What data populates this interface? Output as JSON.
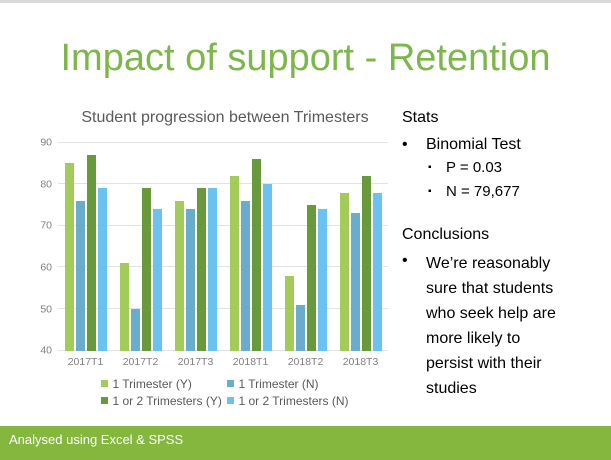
{
  "slide": {
    "title": "Impact of support - Retention",
    "footer_text": "Analysed using Excel & SPSS"
  },
  "chart_data": {
    "type": "bar",
    "title": "Student progression between Trimesters",
    "categories": [
      "2017T1",
      "2017T2",
      "2017T3",
      "2018T1",
      "2018T2",
      "2018T3"
    ],
    "series": [
      {
        "name": "1 Trimester (Y)",
        "color": "#a3cb5a",
        "values": [
          85,
          61,
          76,
          82,
          58,
          78
        ]
      },
      {
        "name": "1 Trimester (N)",
        "color": "#6face0",
        "values": [
          76,
          50,
          74,
          76,
          51,
          73
        ]
      },
      {
        "name": "1 or 2 Trimesters (Y)",
        "color": "#68993b",
        "values": [
          87,
          79,
          79,
          86,
          75,
          82
        ]
      },
      {
        "name": "1 or 2 Trimesters (N)",
        "color": "#6bc1f0",
        "values": [
          79,
          74,
          79,
          80,
          74,
          78
        ]
      }
    ],
    "series_color_fix": {
      "1 Trimester (N)": "#6aaccc"
    },
    "ylim": [
      40,
      90
    ],
    "ytick_step": 10,
    "grid": true,
    "legend_position": "bottom"
  },
  "right_panel": {
    "stats": {
      "heading": "Stats",
      "bullet_char": "•",
      "sub_bullet_char": "▪",
      "item": "Binomial Test",
      "sub_items": [
        "P = 0.03",
        "N = 79,677"
      ]
    },
    "conclusions": {
      "heading": "Conclusions",
      "bullet_char": "•",
      "text": "We’re reasonably sure that students who seek help are more likely to persist with their studies"
    }
  },
  "colors": {
    "title_green": "#7db64a",
    "footer_green": "#85b73e",
    "chart_title_gray": "#595959",
    "axis_label_gray": "#7f7f7f",
    "gridline_gray": "#e2e2e2",
    "top_strip_gray": "#d9d9d9"
  }
}
